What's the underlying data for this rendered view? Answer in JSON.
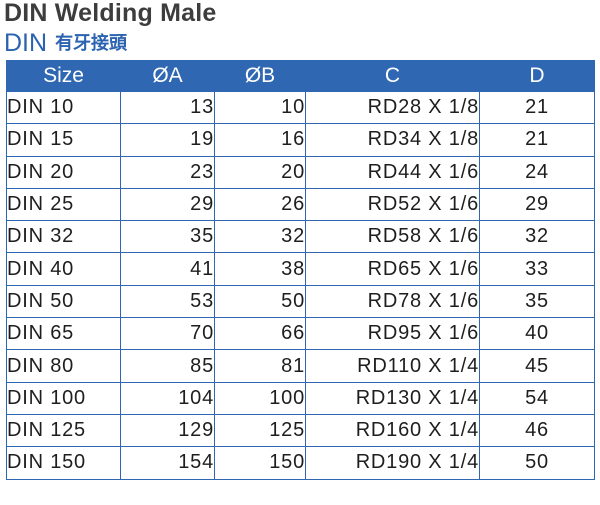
{
  "title": "DIN Welding Male",
  "subtitle": {
    "code": "DIN",
    "chinese": "有牙接頭"
  },
  "colors": {
    "header_background": "#2f67b2",
    "border": "#2f67b2",
    "subtitle_text": "#2b63b0",
    "title_text": "#3d3d3d"
  },
  "table": {
    "headers": [
      "Size",
      "ØA",
      "ØB",
      "C",
      "D"
    ],
    "rows": [
      [
        "DIN 10",
        "13",
        "10",
        "RD28 X 1/8",
        "21"
      ],
      [
        "DIN 15",
        "19",
        "16",
        "RD34 X 1/8",
        "21"
      ],
      [
        "DIN 20",
        "23",
        "20",
        "RD44 X 1/6",
        "24"
      ],
      [
        "DIN 25",
        "29",
        "26",
        "RD52 X 1/6",
        "29"
      ],
      [
        "DIN 32",
        "35",
        "32",
        "RD58 X 1/6",
        "32"
      ],
      [
        "DIN 40",
        "41",
        "38",
        "RD65 X 1/6",
        "33"
      ],
      [
        "DIN 50",
        "53",
        "50",
        "RD78 X 1/6",
        "35"
      ],
      [
        "DIN 65",
        "70",
        "66",
        "RD95 X 1/6",
        "40"
      ],
      [
        "DIN 80",
        "85",
        "81",
        "RD110 X 1/4",
        "45"
      ],
      [
        "DIN 100",
        "104",
        "100",
        "RD130 X 1/4",
        "54"
      ],
      [
        "DIN 125",
        "129",
        "125",
        "RD160 X 1/4",
        "46"
      ],
      [
        "DIN 150",
        "154",
        "150",
        "RD190 X 1/4",
        "50"
      ]
    ]
  }
}
